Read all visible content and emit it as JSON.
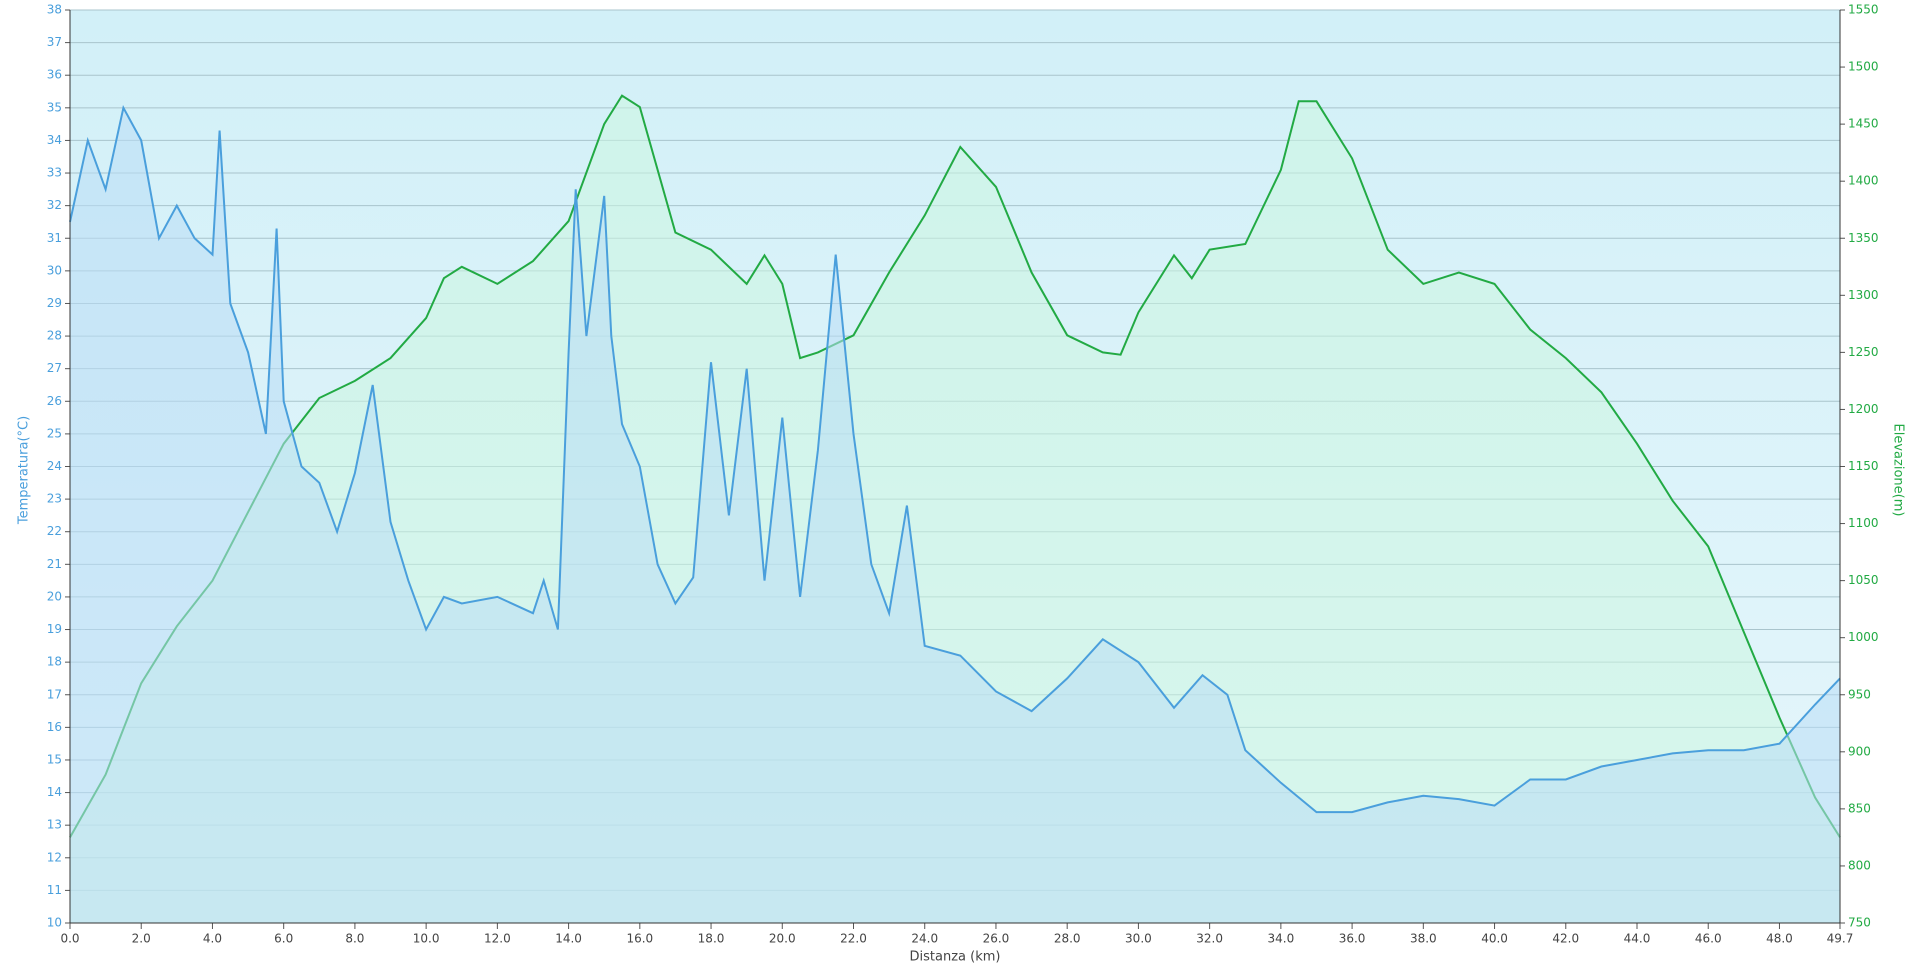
{
  "chart_data": {
    "type": "line",
    "xlabel": "Distanza  (km)",
    "ylabel": "Temperatura(°C)",
    "y2label": "Elevazione(m)",
    "xlim": [
      0,
      49.7
    ],
    "ylim": [
      10,
      38
    ],
    "y2lim": [
      750,
      1550
    ],
    "grid": true,
    "xticks": [
      {
        "value": 0,
        "label": "0.0"
      },
      {
        "value": 2,
        "label": "2.0"
      },
      {
        "value": 4,
        "label": "4.0"
      },
      {
        "value": 6,
        "label": "6.0"
      },
      {
        "value": 8,
        "label": "8.0"
      },
      {
        "value": 10,
        "label": "10.0"
      },
      {
        "value": 12,
        "label": "12.0"
      },
      {
        "value": 14,
        "label": "14.0"
      },
      {
        "value": 16,
        "label": "16.0"
      },
      {
        "value": 18,
        "label": "18.0"
      },
      {
        "value": 20,
        "label": "20.0"
      },
      {
        "value": 22,
        "label": "22.0"
      },
      {
        "value": 24,
        "label": "24.0"
      },
      {
        "value": 26,
        "label": "26.0"
      },
      {
        "value": 28,
        "label": "28.0"
      },
      {
        "value": 30,
        "label": "30.0"
      },
      {
        "value": 32,
        "label": "32.0"
      },
      {
        "value": 34,
        "label": "34.0"
      },
      {
        "value": 36,
        "label": "36.0"
      },
      {
        "value": 38,
        "label": "38.0"
      },
      {
        "value": 40,
        "label": "40.0"
      },
      {
        "value": 42,
        "label": "42.0"
      },
      {
        "value": 44,
        "label": "44.0"
      },
      {
        "value": 46,
        "label": "46.0"
      },
      {
        "value": 48,
        "label": "48.0"
      },
      49.7
    ],
    "yticks": [
      10,
      11,
      12,
      13,
      14,
      15,
      16,
      17,
      18,
      19,
      20,
      21,
      22,
      23,
      24,
      25,
      26,
      27,
      28,
      29,
      30,
      31,
      32,
      33,
      34,
      35,
      36,
      37,
      38
    ],
    "y2ticks": [
      750,
      800,
      850,
      900,
      950,
      1000,
      1050,
      1100,
      1150,
      1200,
      1250,
      1300,
      1350,
      1400,
      1450,
      1500,
      1550
    ],
    "series": [
      {
        "color": "#22aa44",
        "fill": "#ccf5e0",
        "axis": "y2",
        "x": [
          0,
          1,
          2,
          3,
          4,
          5,
          6,
          7,
          8,
          9,
          10,
          10.5,
          11,
          12,
          13,
          14,
          15,
          15.5,
          16,
          17,
          18,
          19,
          19.5,
          20,
          20.5,
          21,
          22,
          23,
          24,
          25,
          26,
          27,
          28,
          29,
          29.5,
          30,
          31,
          31.5,
          32,
          33,
          34,
          34.5,
          35,
          36,
          37,
          38,
          39,
          40,
          41,
          42,
          43,
          44,
          45,
          46,
          47,
          48,
          49,
          49.7
        ],
        "values": [
          825,
          880,
          960,
          1010,
          1050,
          1110,
          1170,
          1210,
          1225,
          1245,
          1280,
          1315,
          1325,
          1310,
          1330,
          1365,
          1450,
          1475,
          1465,
          1355,
          1340,
          1310,
          1335,
          1310,
          1245,
          1250,
          1265,
          1320,
          1370,
          1430,
          1395,
          1320,
          1265,
          1250,
          1248,
          1285,
          1335,
          1315,
          1340,
          1345,
          1410,
          1470,
          1470,
          1420,
          1340,
          1310,
          1320,
          1310,
          1270,
          1245,
          1215,
          1170,
          1120,
          1080,
          1005,
          930,
          860,
          825
        ]
      },
      {
        "color": "#4a9fdc",
        "fill": "#b9dcf5",
        "axis": "y",
        "x": [
          0,
          0.5,
          1,
          1.5,
          2,
          2.5,
          3,
          3.5,
          4,
          4.2,
          4.5,
          5,
          5.5,
          5.8,
          6,
          6.5,
          7,
          7.5,
          8,
          8.5,
          9,
          9.5,
          10,
          10.5,
          11,
          12,
          13,
          13.3,
          13.7,
          14,
          14.2,
          14.5,
          15,
          15.2,
          15.5,
          16,
          16.5,
          17,
          17.5,
          18,
          18.5,
          19,
          19.5,
          20,
          20.5,
          21,
          21.5,
          22,
          22.5,
          23,
          23.5,
          24,
          25,
          26,
          27,
          28,
          29,
          30,
          31,
          31.8,
          32.5,
          33,
          34,
          35,
          36,
          37,
          38,
          39,
          40,
          41,
          42,
          43,
          44,
          45,
          46,
          47,
          48,
          49,
          49.7
        ],
        "values": [
          31.5,
          34,
          32.5,
          35,
          34,
          31,
          32,
          31,
          30.5,
          34.3,
          29,
          27.5,
          25,
          31.3,
          26,
          24,
          23.5,
          22,
          23.8,
          26.5,
          22.3,
          20.5,
          19,
          20,
          19.8,
          20,
          19.5,
          20.5,
          19,
          27.5,
          32.5,
          28,
          32.3,
          28,
          25.3,
          24,
          21,
          19.8,
          20.6,
          27.2,
          22.5,
          27,
          20.5,
          25.5,
          20,
          24.5,
          30.5,
          25,
          21,
          19.5,
          22.8,
          18.5,
          18.2,
          17.1,
          16.5,
          17.5,
          18.7,
          18,
          16.6,
          17.6,
          17,
          15.3,
          14.3,
          13.4,
          13.4,
          13.7,
          13.9,
          13.8,
          13.6,
          14.4,
          14.4,
          14.8,
          15,
          15.2,
          15.3,
          15.3,
          15.5,
          16.7,
          17.5
        ]
      }
    ]
  }
}
